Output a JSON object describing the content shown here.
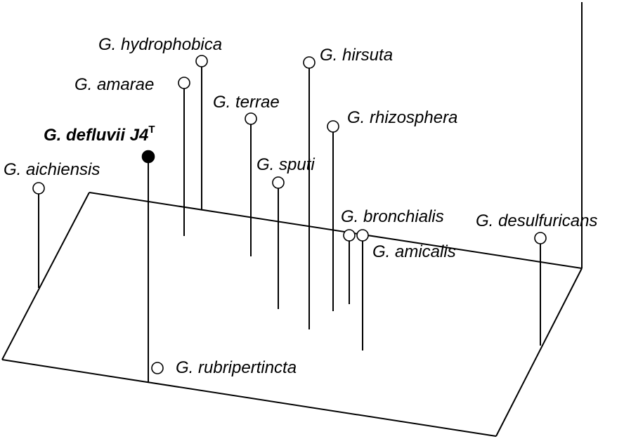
{
  "chart_data": {
    "type": "scatter",
    "title": "",
    "points": [
      {
        "label": "G. hydrophobica",
        "filled": false
      },
      {
        "label": "G. amarae",
        "filled": false
      },
      {
        "label": "G. hirsuta",
        "filled": false
      },
      {
        "label": "G. terrae",
        "filled": false
      },
      {
        "label": "G. rhizosphera",
        "filled": false
      },
      {
        "label": "G. defluvii J4",
        "label_superscript": "T",
        "filled": true,
        "bold": true
      },
      {
        "label": "G. sputi",
        "filled": false
      },
      {
        "label": "G. aichiensis",
        "filled": false
      },
      {
        "label": "G. bronchialis",
        "filled": false
      },
      {
        "label": "G. desulfuricans",
        "filled": false
      },
      {
        "label": "G. amicalis",
        "filled": false
      },
      {
        "label": "G. rubripertincta",
        "filled": false
      }
    ],
    "colors": {
      "line": "#000000",
      "filled_marker": "#000000",
      "open_marker": "#ffffff"
    }
  }
}
